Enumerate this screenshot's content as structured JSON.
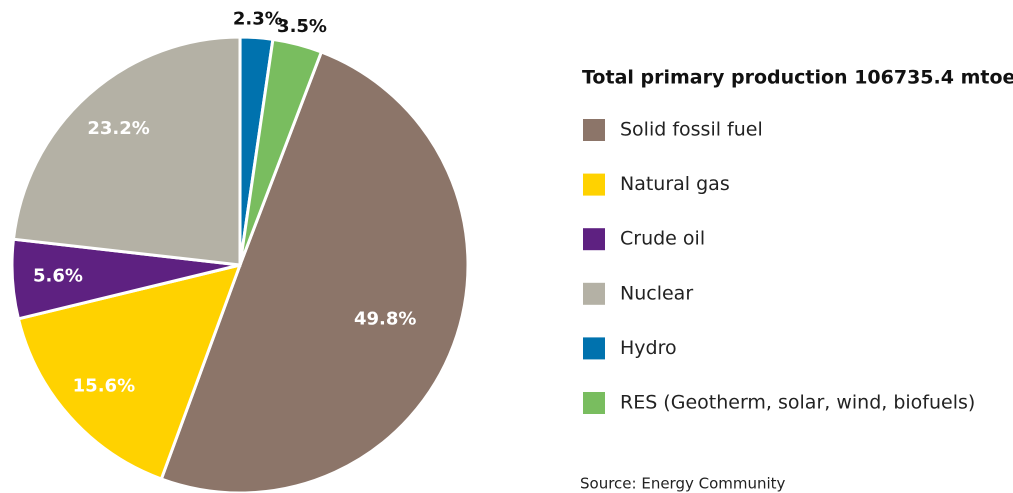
{
  "chart_data": {
    "type": "pie",
    "title": "Total primary production 106735.4 mtoe",
    "categories": [
      "Solid fossil fuel",
      "Natural gas",
      "Crude oil",
      "Nuclear",
      "Hydro",
      "RES (Geotherm, solar, wind, biofuels)"
    ],
    "values": [
      49.8,
      15.6,
      5.6,
      23.2,
      2.3,
      3.5
    ],
    "value_labels": [
      "49.8%",
      "15.6%",
      "5.6%",
      "23.2%",
      "2.3%",
      "3.5%"
    ],
    "colors": [
      "#8c7569",
      "#ffd200",
      "#5e2181",
      "#b4b1a5",
      "#0072ae",
      "#79bd5f"
    ],
    "source": "Source: Energy Community"
  }
}
